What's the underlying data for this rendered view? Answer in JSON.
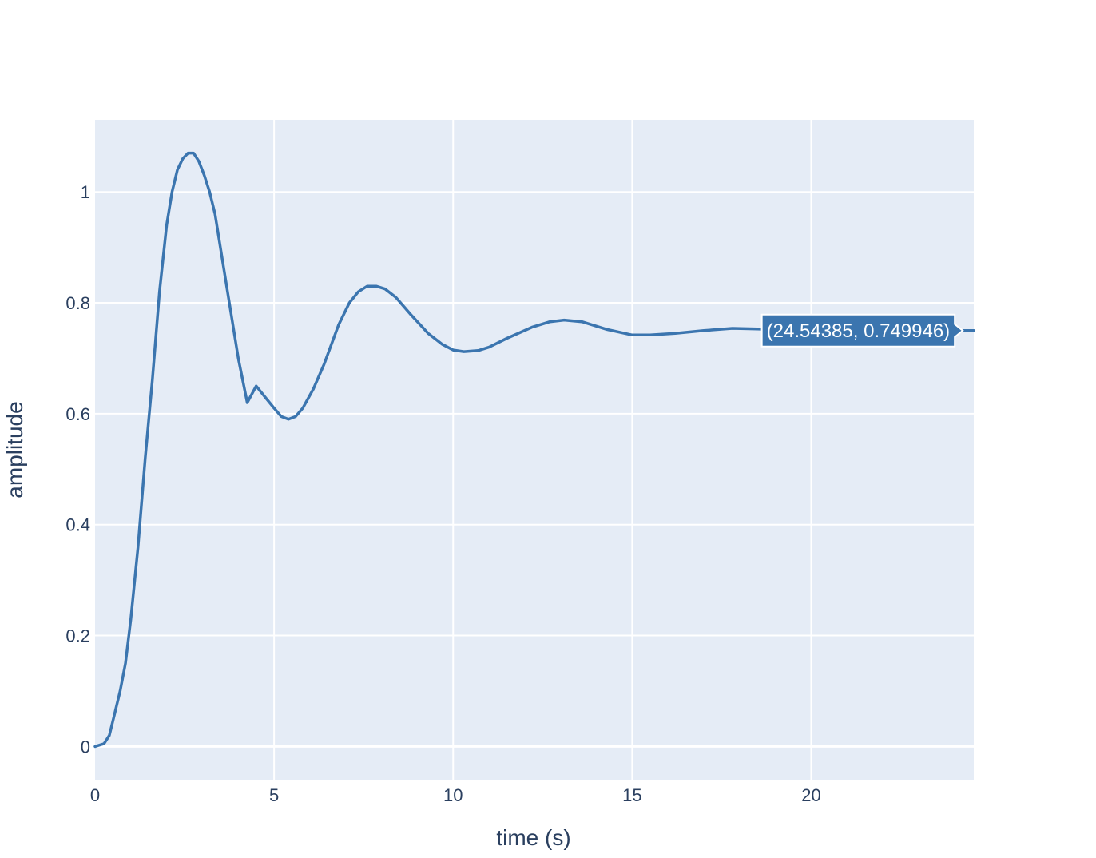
{
  "chart_data": {
    "type": "line",
    "title": "",
    "xlabel": "time (s)",
    "ylabel": "amplitude",
    "xlim": [
      0,
      24.54
    ],
    "ylim": [
      -0.06,
      1.13
    ],
    "x_ticks": [
      0,
      5,
      10,
      15,
      20
    ],
    "x_tick_labels": [
      "0",
      "5",
      "10",
      "15",
      "20"
    ],
    "y_ticks": [
      0,
      0.2,
      0.4,
      0.6,
      0.8,
      1
    ],
    "y_tick_labels": [
      "0",
      "0.2",
      "0.4",
      "0.6",
      "0.8",
      "1"
    ],
    "grid": true,
    "legend": "none",
    "colors": {
      "line": "#3b75af",
      "plot_bg": "#e5ecf6",
      "grid": "#ffffff",
      "text": "#2a3f5f"
    },
    "series": [
      {
        "x": [
          0,
          0.25,
          0.4,
          0.55,
          0.7,
          0.85,
          1.0,
          1.2,
          1.4,
          1.6,
          1.8,
          2.0,
          2.15,
          2.3,
          2.45,
          2.6,
          2.75,
          2.9,
          3.05,
          3.2,
          3.35,
          3.55,
          3.75,
          4.0,
          4.25,
          4.5,
          4.75,
          5.0,
          5.2,
          5.4,
          5.6,
          5.8,
          6.1,
          6.4,
          6.8,
          7.1,
          7.35,
          7.6,
          7.85,
          8.1,
          8.4,
          8.8,
          9.3,
          9.7,
          10.0,
          10.3,
          10.7,
          11.0,
          11.5,
          12.2,
          12.7,
          13.1,
          13.6,
          14.3,
          15.0,
          15.5,
          16.2,
          17.0,
          17.8,
          18.5,
          19.3,
          20.1,
          21.0,
          22.0,
          23.0,
          24.0,
          24.54
        ],
        "y": [
          0.0,
          0.005,
          0.02,
          0.06,
          0.1,
          0.15,
          0.23,
          0.36,
          0.52,
          0.66,
          0.82,
          0.94,
          1.0,
          1.04,
          1.06,
          1.07,
          1.07,
          1.055,
          1.03,
          1.0,
          0.96,
          0.88,
          0.8,
          0.7,
          0.62,
          0.65,
          0.63,
          0.61,
          0.595,
          0.59,
          0.595,
          0.61,
          0.645,
          0.69,
          0.76,
          0.8,
          0.82,
          0.83,
          0.83,
          0.825,
          0.81,
          0.78,
          0.745,
          0.725,
          0.715,
          0.712,
          0.714,
          0.72,
          0.736,
          0.756,
          0.766,
          0.769,
          0.766,
          0.752,
          0.742,
          0.742,
          0.745,
          0.75,
          0.754,
          0.753,
          0.751,
          0.75,
          0.7495,
          0.75,
          0.75,
          0.75,
          0.749946
        ]
      }
    ],
    "hover_label": {
      "text": "(24.54385, 0.749946)",
      "x": 24.54385,
      "y": 0.749946
    }
  }
}
